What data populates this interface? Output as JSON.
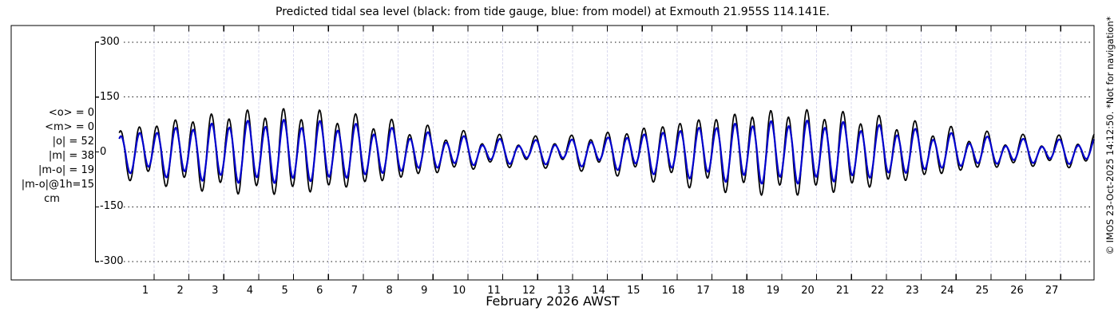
{
  "title": "Predicted tidal sea level (black: from tide gauge, blue: from model) at Exmouth 21.955S 114.141E.",
  "stats": {
    "lines": [
      "<o> = 0",
      "<m> = 0",
      "|o| = 52",
      "|m| = 38",
      "|m-o| = 19",
      "|m-o|@1h=15"
    ],
    "unit": "cm"
  },
  "watermark": "© IMOS 23-Oct-2025 14:12:50. *Not for navigation*",
  "chart_data": {
    "type": "line",
    "title": "Predicted tidal sea level (black: from tide gauge, blue: from model) at Exmouth 21.955S 114.141E.",
    "xlabel": "February 2026 AWST",
    "ylabel": "cm",
    "x_axis": {
      "tick_labels": [
        "1",
        "2",
        "3",
        "4",
        "5",
        "6",
        "7",
        "8",
        "9",
        "10",
        "11",
        "12",
        "13",
        "14",
        "15",
        "16",
        "17",
        "18",
        "19",
        "20",
        "21",
        "22",
        "23",
        "24",
        "25",
        "26",
        "27"
      ],
      "range_days": [
        0,
        28
      ],
      "month": "February 2026",
      "timezone": "AWST"
    },
    "y_axis": {
      "ticks": [
        300,
        150,
        0,
        -150,
        -300
      ],
      "range": [
        -300,
        300
      ],
      "unit": "cm"
    },
    "legend": {
      "black": "from tide gauge",
      "blue": "from model"
    },
    "grid": {
      "horizontal": "black dotted",
      "vertical": "light dashed"
    },
    "colors": {
      "gauge": "#000000",
      "model": "#0000cc",
      "vgrid": "#d9d9ee",
      "hgrid": "#111111"
    },
    "stats_cm": {
      "mean_o": 0,
      "mean_m": 0,
      "abs_o": 52,
      "abs_m": 38,
      "abs_m_minus_o": 19,
      "abs_m_minus_o_at_1h": 15
    },
    "series": [
      {
        "name": "tide gauge",
        "color": "#000000",
        "line_width": 1.7,
        "harmonic_model": {
          "semidiurnal_period_days": 0.51753,
          "semidiurnal_phase_days": 0.05,
          "envelope_mean_cm": 68,
          "envelope_amp_cm": 37,
          "envelope_period_days": 14.77,
          "envelope_phase_days": 4.4,
          "diurnal_amp_cm": 17,
          "diurnal_period_days": 1.0027,
          "diurnal_phase_days": 0.8
        }
      },
      {
        "name": "model",
        "color": "#0000cc",
        "line_width": 2.2,
        "harmonic_model": {
          "semidiurnal_period_days": 0.51753,
          "semidiurnal_phase_days": 0.06,
          "envelope_mean_cm": 51,
          "envelope_amp_cm": 27,
          "envelope_period_days": 14.77,
          "envelope_phase_days": 4.4,
          "diurnal_amp_cm": 12,
          "diurnal_period_days": 1.0027,
          "diurnal_phase_days": 0.8
        }
      }
    ],
    "sample_step_days": 0.02
  }
}
